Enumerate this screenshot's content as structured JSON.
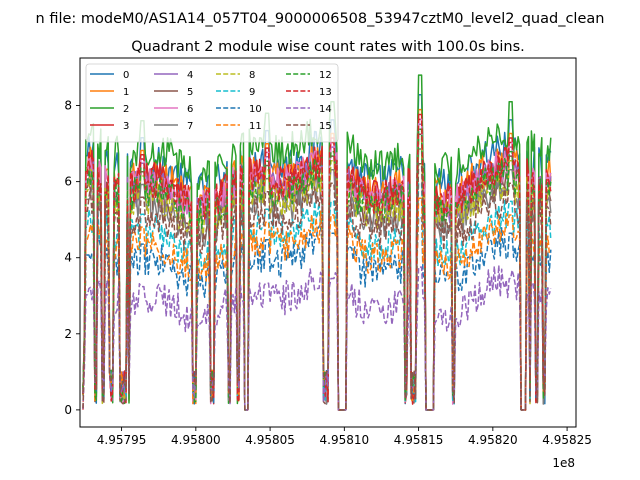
{
  "figure": {
    "suptitle": "n file: modeM0/AS1A14_057T04_9000006508_53947cztM0_level2_quad_clean",
    "title": "Quadrant 2 module wise count rates with 100.0s bins."
  },
  "chart_data": {
    "type": "line",
    "title": "Quadrant 2 module wise count rates with 100.0s bins.",
    "xlabel": "",
    "ylabel": "",
    "x_offset_label": "1e8",
    "xlim": [
      495792200.0,
      495825600.0
    ],
    "ylim": [
      -0.45,
      9.25
    ],
    "x_ticks": [
      495795000,
      495800000,
      495805000,
      495810000,
      495815000,
      495820000,
      495825000
    ],
    "x_tick_labels": [
      "4.95795",
      "4.95800",
      "4.95805",
      "4.95810",
      "4.95815",
      "4.95820",
      "4.95825"
    ],
    "y_ticks": [
      0,
      2,
      4,
      6,
      8
    ],
    "y_tick_labels": [
      "0",
      "2",
      "4",
      "6",
      "8"
    ],
    "grid": false,
    "legend_placement": "top-left",
    "legend_columns": 4,
    "segments": [
      [
        495792400,
        495792800,
        "ramp"
      ],
      [
        495792800,
        495793150,
        "on"
      ],
      [
        495793150,
        495793400,
        "off"
      ],
      [
        495793400,
        495793650,
        "on"
      ],
      [
        495793650,
        495793850,
        "off"
      ],
      [
        495793850,
        495794200,
        "on"
      ],
      [
        495794200,
        495794500,
        "off"
      ],
      [
        495794500,
        495794900,
        "on"
      ],
      [
        495794900,
        495795400,
        "off"
      ],
      [
        495795400,
        495795500,
        "on"
      ],
      [
        495795500,
        495795600,
        "off"
      ],
      [
        495795600,
        495799800,
        "on"
      ],
      [
        495799800,
        495800100,
        "off"
      ],
      [
        495800100,
        495801000,
        "on"
      ],
      [
        495801000,
        495801300,
        "off"
      ],
      [
        495801300,
        495802200,
        "on"
      ],
      [
        495802200,
        495802400,
        "off"
      ],
      [
        495802400,
        495802800,
        "on"
      ],
      [
        495802800,
        495803000,
        "off"
      ],
      [
        495803000,
        495803300,
        "on"
      ],
      [
        495803300,
        495803600,
        "zero"
      ],
      [
        495803600,
        495808600,
        "on"
      ],
      [
        495808600,
        495809000,
        "off"
      ],
      [
        495809000,
        495809600,
        "on"
      ],
      [
        495809600,
        495810200,
        "zero"
      ],
      [
        495810200,
        495814100,
        "on"
      ],
      [
        495814100,
        495814300,
        "off"
      ],
      [
        495814300,
        495814500,
        "on"
      ],
      [
        495814500,
        495814900,
        "off"
      ],
      [
        495814900,
        495815500,
        "on"
      ],
      [
        495815500,
        495816100,
        "zero"
      ],
      [
        495816100,
        495817300,
        "on"
      ],
      [
        495817300,
        495817500,
        "off"
      ],
      [
        495817500,
        495821200,
        "on"
      ],
      [
        495821200,
        495821300,
        "off"
      ],
      [
        495821300,
        495821900,
        "on"
      ],
      [
        495821900,
        495822300,
        "zero"
      ],
      [
        495822300,
        495822500,
        "on"
      ],
      [
        495822500,
        495822600,
        "off"
      ],
      [
        495822600,
        495822900,
        "on"
      ],
      [
        495822900,
        495823100,
        "off"
      ],
      [
        495823100,
        495823400,
        "on"
      ],
      [
        495823400,
        495823600,
        "off"
      ],
      [
        495823600,
        495823900,
        "on"
      ]
    ],
    "spikes": [
      [
        495792700,
        7.1
      ],
      [
        495796400,
        7.6
      ],
      [
        495804800,
        7.8
      ],
      [
        495809200,
        8.1
      ],
      [
        495815100,
        8.8
      ],
      [
        495821200,
        8.1
      ]
    ],
    "series": [
      {
        "name": "0",
        "color": "#1f77b4",
        "style": "solid",
        "level": 6.4
      },
      {
        "name": "1",
        "color": "#ff7f0e",
        "style": "solid",
        "level": 6.1
      },
      {
        "name": "2",
        "color": "#2ca02c",
        "style": "solid",
        "level": 6.8
      },
      {
        "name": "3",
        "color": "#d62728",
        "style": "solid",
        "level": 6.0
      },
      {
        "name": "4",
        "color": "#9467bd",
        "style": "solid",
        "level": 5.8
      },
      {
        "name": "5",
        "color": "#8c564b",
        "style": "solid",
        "level": 5.6
      },
      {
        "name": "6",
        "color": "#e377c2",
        "style": "solid",
        "level": 5.9
      },
      {
        "name": "7",
        "color": "#7f7f7f",
        "style": "solid",
        "level": 5.3
      },
      {
        "name": "8",
        "color": "#bcbd22",
        "style": "dashed",
        "level": 5.5
      },
      {
        "name": "9",
        "color": "#17becf",
        "style": "dashed",
        "level": 4.6
      },
      {
        "name": "10",
        "color": "#1f77b4",
        "style": "dashed",
        "level": 3.9
      },
      {
        "name": "11",
        "color": "#ff7f0e",
        "style": "dashed",
        "level": 4.3
      },
      {
        "name": "12",
        "color": "#2ca02c",
        "style": "dashed",
        "level": 5.7
      },
      {
        "name": "13",
        "color": "#d62728",
        "style": "dashed",
        "level": 5.9
      },
      {
        "name": "14",
        "color": "#9467bd",
        "style": "dashed",
        "level": 2.9
      },
      {
        "name": "15",
        "color": "#8c564b",
        "style": "dashed",
        "level": 5.0
      }
    ]
  }
}
